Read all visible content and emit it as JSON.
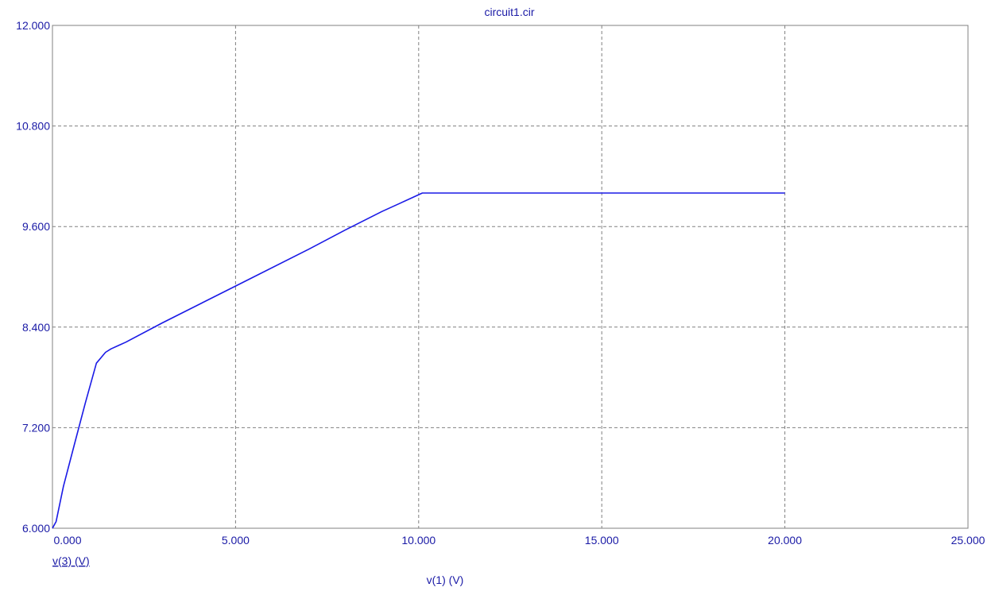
{
  "chart_data": {
    "type": "line",
    "title": "circuit1.cir",
    "xlabel": "v(1) (V)",
    "ylabel": "v(3) (V)",
    "xlim": [
      0,
      25
    ],
    "ylim": [
      6,
      12
    ],
    "x_ticks": [
      "0.000",
      "5.000",
      "10.000",
      "15.000",
      "20.000",
      "25.000"
    ],
    "y_ticks": [
      "6.000",
      "7.200",
      "8.400",
      "9.600",
      "10.800",
      "12.000"
    ],
    "grid": true,
    "colors": {
      "series": "#1a1ae6",
      "text": "#1a1aa6",
      "grid": "#808080",
      "frame": "#808080"
    },
    "series": [
      {
        "x": [
          0.0,
          0.1,
          0.3,
          0.6,
          0.9,
          1.2,
          1.45,
          1.6,
          1.8,
          2.0,
          3.0,
          5.0,
          7.0,
          8.0,
          9.0,
          9.5,
          10.0,
          10.1,
          15.0,
          20.0
        ],
        "y": [
          6.0,
          6.08,
          6.5,
          7.0,
          7.5,
          7.97,
          8.1,
          8.14,
          8.18,
          8.22,
          8.45,
          8.89,
          9.33,
          9.56,
          9.78,
          9.88,
          9.98,
          10.0,
          10.0,
          10.0
        ]
      }
    ]
  }
}
